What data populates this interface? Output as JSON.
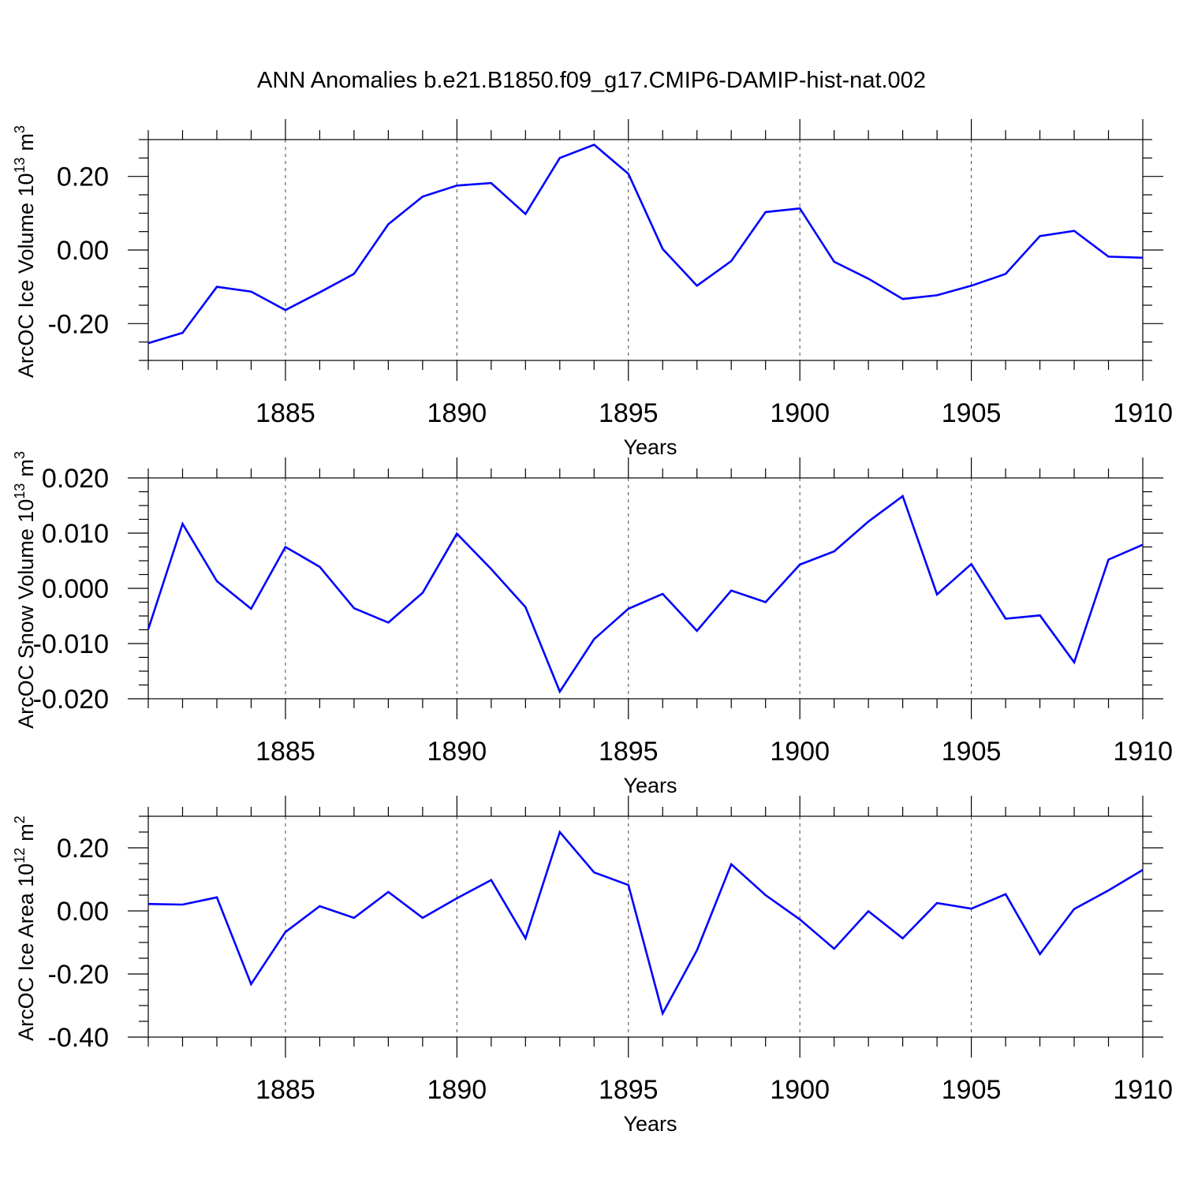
{
  "title": "ANN Anomalies b.e21.B1850.f09_g17.CMIP6-DAMIP-hist-nat.002",
  "colors": {
    "line": "#0000ff",
    "frame": "#000000",
    "grid": "#555555"
  },
  "chart_data": [
    {
      "type": "line",
      "ylabel_main": "ArcOC Ice Volume 10",
      "ylabel_exp": "13",
      "ylabel_unit": "m",
      "ylabel_unit_exp": "3",
      "xlabel": "Years",
      "xlim": [
        1881,
        1910
      ],
      "ylim": [
        -0.3,
        0.3
      ],
      "yticks": [
        -0.2,
        0.0,
        0.2
      ],
      "yticklabels": [
        "-0.20",
        "0.00",
        "0.20"
      ],
      "xticks": [
        1885,
        1890,
        1895,
        1900,
        1905,
        1910
      ],
      "xticklabels": [
        "1885",
        "1890",
        "1895",
        "1900",
        "1905",
        "1910"
      ],
      "grid": "vertical dashed at major x ticks",
      "x": [
        1881,
        1882,
        1883,
        1884,
        1885,
        1886,
        1887,
        1888,
        1889,
        1890,
        1891,
        1892,
        1893,
        1894,
        1895,
        1896,
        1897,
        1898,
        1899,
        1900,
        1901,
        1902,
        1903,
        1904,
        1905,
        1906,
        1907,
        1908,
        1909,
        1910
      ],
      "values": [
        -0.253,
        -0.225,
        -0.1,
        -0.113,
        -0.163,
        -0.115,
        -0.065,
        0.07,
        0.145,
        0.175,
        0.182,
        0.098,
        0.25,
        0.286,
        0.207,
        0.003,
        -0.097,
        -0.03,
        0.103,
        0.113,
        -0.032,
        -0.078,
        -0.133,
        -0.123,
        -0.097,
        -0.065,
        0.038,
        0.052,
        -0.018,
        -0.021
      ]
    },
    {
      "type": "line",
      "ylabel_main": "ArcOC Snow Volume 10",
      "ylabel_exp": "13",
      "ylabel_unit": "m",
      "ylabel_unit_exp": "3",
      "xlabel": "Years",
      "xlim": [
        1881,
        1910
      ],
      "ylim": [
        -0.02,
        0.02
      ],
      "yticks": [
        -0.02,
        -0.01,
        0.0,
        0.01,
        0.02
      ],
      "yticklabels": [
        "-0.020",
        "-0.010",
        "0.000",
        "0.010",
        "0.020"
      ],
      "xticks": [
        1885,
        1890,
        1895,
        1900,
        1905,
        1910
      ],
      "xticklabels": [
        "1885",
        "1890",
        "1895",
        "1900",
        "1905",
        "1910"
      ],
      "grid": "vertical dashed at major x ticks",
      "x": [
        1881,
        1882,
        1883,
        1884,
        1885,
        1886,
        1887,
        1888,
        1889,
        1890,
        1891,
        1892,
        1893,
        1894,
        1895,
        1896,
        1897,
        1898,
        1899,
        1900,
        1901,
        1902,
        1903,
        1904,
        1905,
        1906,
        1907,
        1908,
        1909,
        1910
      ],
      "values": [
        -0.0074,
        0.0117,
        0.0013,
        -0.0037,
        0.0075,
        0.0039,
        -0.0036,
        -0.0062,
        -0.0008,
        0.0099,
        0.0035,
        -0.0034,
        -0.0187,
        -0.0092,
        -0.0037,
        -0.001,
        -0.0077,
        -0.0004,
        -0.0025,
        0.0043,
        0.0067,
        0.0121,
        0.0167,
        -0.0011,
        0.0044,
        -0.0055,
        -0.0049,
        -0.0134,
        0.0052,
        0.0079
      ]
    },
    {
      "type": "line",
      "ylabel_main": "ArcOC Ice Area 10",
      "ylabel_exp": "12",
      "ylabel_unit": "m",
      "ylabel_unit_exp": "2",
      "xlabel": "Years",
      "xlim": [
        1881,
        1910
      ],
      "ylim": [
        -0.4,
        0.3
      ],
      "yticks": [
        -0.4,
        -0.2,
        0.0,
        0.2
      ],
      "yticklabels": [
        "-0.40",
        "-0.20",
        "0.00",
        "0.20"
      ],
      "xticks": [
        1885,
        1890,
        1895,
        1900,
        1905,
        1910
      ],
      "xticklabels": [
        "1885",
        "1890",
        "1895",
        "1900",
        "1905",
        "1910"
      ],
      "grid": "vertical dashed at major x ticks",
      "x": [
        1881,
        1882,
        1883,
        1884,
        1885,
        1886,
        1887,
        1888,
        1889,
        1890,
        1891,
        1892,
        1893,
        1894,
        1895,
        1896,
        1897,
        1898,
        1899,
        1900,
        1901,
        1902,
        1903,
        1904,
        1905,
        1906,
        1907,
        1908,
        1909,
        1910
      ],
      "values": [
        0.022,
        0.02,
        0.043,
        -0.232,
        -0.067,
        0.015,
        -0.022,
        0.06,
        -0.022,
        0.04,
        0.098,
        -0.087,
        0.25,
        0.122,
        0.082,
        -0.325,
        -0.125,
        0.148,
        0.05,
        -0.027,
        -0.12,
        -0.001,
        -0.087,
        0.025,
        0.007,
        0.053,
        -0.137,
        0.006,
        0.065,
        0.13
      ]
    }
  ]
}
